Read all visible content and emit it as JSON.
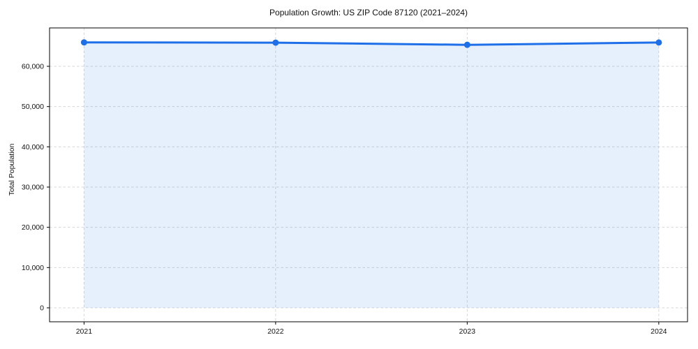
{
  "chart_data": {
    "type": "line",
    "title": "Population Growth: US ZIP Code 87120 (2021–2024)",
    "xlabel": "",
    "ylabel": "Total Population",
    "x": [
      2021,
      2022,
      2023,
      2024
    ],
    "series": [
      {
        "name": "Total Population",
        "values": [
          65950,
          65880,
          65350,
          65920
        ]
      }
    ],
    "xticks": [
      2021,
      2022,
      2023,
      2024
    ],
    "yticks": [
      0,
      10000,
      20000,
      30000,
      40000,
      50000,
      60000
    ],
    "xlim": [
      2020.82,
      2024.15
    ],
    "ylim": [
      -3470,
      69540
    ],
    "grid": "dashed, both axes, light gray",
    "legend_position": "none",
    "fill_area": "under line from first to last point down to y=0",
    "colors": {
      "line": "#1e6fe8",
      "marker": "#1e6fe8",
      "fill": "rgba(30,111,232,0.11)",
      "grid": "#d7d7d7",
      "spine": "#000000",
      "text": "#111111",
      "background": "#ffffff"
    }
  }
}
